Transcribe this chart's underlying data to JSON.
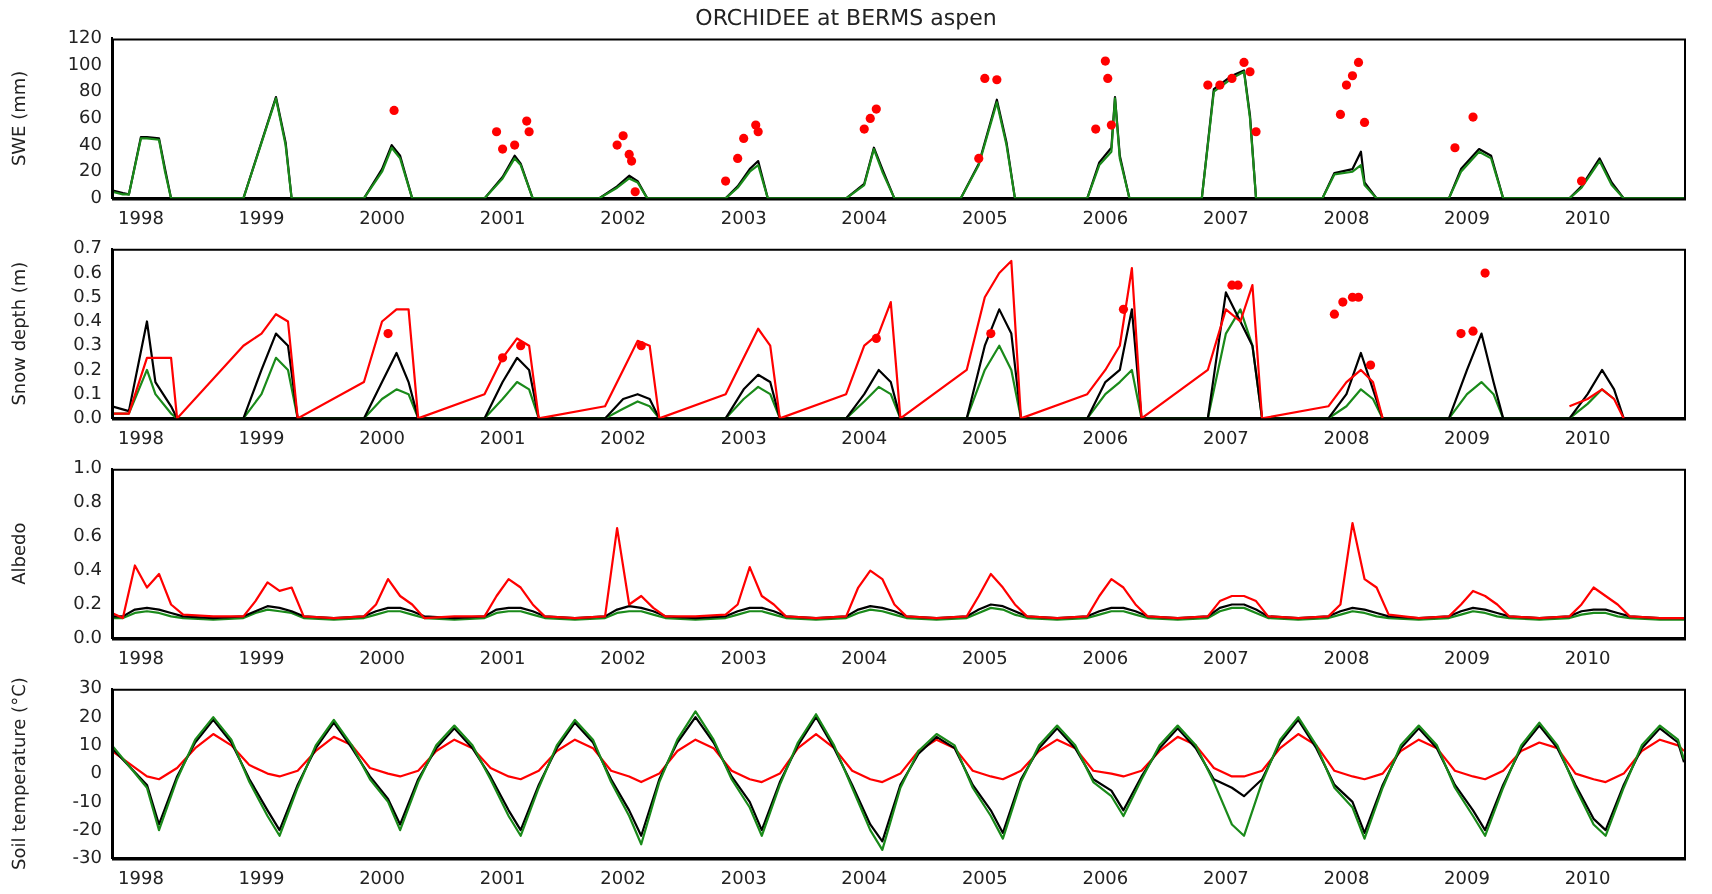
{
  "chart_data": [
    {
      "type": "line",
      "title": "ORCHIDEE at BERMS aspen",
      "ylabel": "SWE (mm)",
      "xlim": [
        1997.76,
        2010.8
      ],
      "xticks": [
        1998,
        1999,
        2000,
        2001,
        2002,
        2003,
        2004,
        2005,
        2006,
        2007,
        2008,
        2009,
        2010
      ],
      "ylim": [
        0,
        120
      ],
      "yticks": [
        0,
        20,
        40,
        60,
        80,
        100,
        120
      ],
      "grid": false,
      "legend": false,
      "x": [
        1997.76,
        1997.85,
        1997.9,
        1998.0,
        1998.05,
        1998.15,
        1998.2,
        1998.25,
        1998.3,
        1998.85,
        1999.12,
        1999.2,
        1999.25,
        1999.85,
        2000.0,
        2000.08,
        2000.15,
        2000.25,
        2000.85,
        2001.0,
        2001.1,
        2001.15,
        2001.25,
        2001.8,
        2001.95,
        2002.05,
        2002.12,
        2002.2,
        2002.85,
        2002.95,
        2003.05,
        2003.12,
        2003.2,
        2003.85,
        2004.0,
        2004.08,
        2004.15,
        2004.25,
        2004.8,
        2004.95,
        2005.1,
        2005.18,
        2005.25,
        2005.85,
        2005.95,
        2006.05,
        2006.08,
        2006.12,
        2006.2,
        2006.8,
        2006.9,
        2007.05,
        2007.15,
        2007.2,
        2007.25,
        2007.8,
        2007.9,
        2008.05,
        2008.12,
        2008.15,
        2008.25,
        2008.85,
        2008.95,
        2009.1,
        2009.2,
        2009.3,
        2009.85,
        2009.95,
        2010.1,
        2010.2,
        2010.3,
        2010.8
      ],
      "series": [
        {
          "color": "#1a8a1a",
          "values": [
            5,
            3,
            3,
            45,
            45,
            44,
            20,
            0,
            0,
            0,
            75,
            40,
            0,
            0,
            20,
            38,
            30,
            0,
            0,
            15,
            30,
            25,
            0,
            0,
            8,
            15,
            12,
            0,
            0,
            8,
            20,
            25,
            0,
            0,
            10,
            37,
            20,
            0,
            0,
            25,
            72,
            40,
            0,
            0,
            25,
            35,
            75,
            30,
            0,
            0,
            80,
            90,
            95,
            60,
            0,
            0,
            18,
            20,
            25,
            10,
            0,
            0,
            20,
            35,
            30,
            0,
            0,
            8,
            28,
            10,
            0,
            0
          ]
        },
        {
          "color": "#000000",
          "values": [
            6,
            4,
            3,
            46,
            46,
            45,
            22,
            0,
            0,
            0,
            76,
            42,
            0,
            0,
            22,
            40,
            32,
            0,
            0,
            16,
            32,
            26,
            0,
            0,
            9,
            17,
            13,
            0,
            0,
            9,
            22,
            28,
            0,
            0,
            11,
            38,
            22,
            0,
            0,
            26,
            74,
            42,
            0,
            0,
            27,
            38,
            76,
            32,
            0,
            0,
            82,
            92,
            96,
            62,
            0,
            0,
            19,
            22,
            35,
            12,
            0,
            0,
            22,
            37,
            32,
            0,
            0,
            9,
            30,
            12,
            0,
            0
          ]
        },
        {
          "type": "scatter",
          "marker": "circle",
          "color": "#ff0000",
          "x": [
            2000.1,
            2000.95,
            2001.0,
            2001.1,
            2001.2,
            2001.22,
            2001.95,
            2002.0,
            2002.05,
            2002.07,
            2002.1,
            2002.85,
            2002.95,
            2003.0,
            2003.1,
            2003.12,
            2004.0,
            2004.05,
            2004.1,
            2004.95,
            2005.0,
            2005.1,
            2005.92,
            2006.0,
            2006.02,
            2006.05,
            2006.85,
            2006.95,
            2007.05,
            2007.15,
            2007.2,
            2007.25,
            2007.95,
            2008.0,
            2008.05,
            2008.1,
            2008.15,
            2008.9,
            2009.05,
            2009.95
          ],
          "values": [
            66,
            50,
            37,
            40,
            58,
            50,
            40,
            47,
            33,
            28,
            5,
            13,
            30,
            45,
            55,
            50,
            52,
            60,
            67,
            30,
            90,
            89,
            52,
            103,
            90,
            55,
            85,
            85,
            90,
            102,
            95,
            50,
            63,
            85,
            92,
            102,
            57,
            38,
            61,
            13
          ]
        }
      ]
    },
    {
      "type": "line",
      "ylabel": "Snow depth (m)",
      "xlim": [
        1997.76,
        2010.8
      ],
      "xticks": [
        1998,
        1999,
        2000,
        2001,
        2002,
        2003,
        2004,
        2005,
        2006,
        2007,
        2008,
        2009,
        2010
      ],
      "ylim": [
        0,
        0.7
      ],
      "yticks": [
        {
          "value": 0,
          "label": "0.0"
        },
        {
          "value": 0.1,
          "label": "0.1"
        },
        {
          "value": 0.2,
          "label": "0.2"
        },
        {
          "value": 0.3,
          "label": "0.3"
        },
        {
          "value": 0.4,
          "label": "0.4"
        },
        {
          "value": 0.5,
          "label": "0.5"
        },
        {
          "value": 0.6,
          "label": "0.6"
        },
        {
          "value": 0.7,
          "label": "0.7"
        }
      ],
      "grid": false,
      "legend": false,
      "x": [
        1997.76,
        1997.9,
        1998.05,
        1998.12,
        1998.25,
        1998.3,
        1998.85,
        1999.0,
        1999.12,
        1999.22,
        1999.3,
        1999.85,
        2000.0,
        2000.12,
        2000.22,
        2000.3,
        2000.85,
        2001.0,
        2001.12,
        2001.22,
        2001.3,
        2001.85,
        2002.0,
        2002.12,
        2002.22,
        2002.3,
        2002.85,
        2003.0,
        2003.12,
        2003.22,
        2003.3,
        2003.85,
        2004.0,
        2004.12,
        2004.22,
        2004.3,
        2004.85,
        2005.0,
        2005.12,
        2005.22,
        2005.3,
        2005.85,
        2006.0,
        2006.12,
        2006.22,
        2006.3,
        2006.85,
        2007.0,
        2007.12,
        2007.22,
        2007.3,
        2007.85,
        2008.0,
        2008.12,
        2008.22,
        2008.3,
        2008.85,
        2009.0,
        2009.12,
        2009.22,
        2009.3,
        2009.85,
        2010.0,
        2010.12,
        2010.22,
        2010.3,
        2010.8
      ],
      "series": [
        {
          "color": "#ff0000",
          "values": [
            0.02,
            0.02,
            0.25,
            0.25,
            0.25,
            0,
            0.3,
            0.35,
            0.43,
            0.4,
            0,
            0.15,
            0.4,
            0.45,
            0.45,
            0,
            0.1,
            0.25,
            0.33,
            0.3,
            0,
            0.05,
            0.2,
            0.32,
            0.3,
            0,
            0.1,
            0.25,
            0.37,
            0.3,
            0,
            0.1,
            0.3,
            0.35,
            0.48,
            0,
            0.2,
            0.5,
            0.6,
            0.65,
            0,
            0.1,
            0.2,
            0.3,
            0.62,
            0,
            0.2,
            0.45,
            0.4,
            0.55,
            0,
            0.05,
            0.15,
            0.2,
            0.15,
            0,
            null,
            null,
            null,
            null,
            null,
            0.05,
            0.08,
            0.12,
            0.08,
            0,
            null
          ]
        },
        {
          "color": "#000000",
          "values": [
            0.05,
            0.03,
            0.4,
            0.15,
            0.05,
            0,
            0,
            0.2,
            0.35,
            0.3,
            0,
            0,
            0.15,
            0.27,
            0.15,
            0,
            0,
            0.15,
            0.25,
            0.2,
            0,
            0,
            0.08,
            0.1,
            0.08,
            0,
            0,
            0.12,
            0.18,
            0.15,
            0,
            0,
            0.1,
            0.2,
            0.15,
            0,
            0,
            0.3,
            0.45,
            0.35,
            0,
            0,
            0.15,
            0.2,
            0.45,
            0,
            0,
            0.52,
            0.4,
            0.3,
            0,
            0,
            0.1,
            0.27,
            0.12,
            0,
            0,
            0.2,
            0.35,
            0.15,
            0,
            0,
            0.1,
            0.2,
            0.12,
            0,
            0
          ]
        },
        {
          "color": "#1a8a1a",
          "values": [
            0.02,
            0.02,
            0.2,
            0.1,
            0.02,
            0,
            0,
            0.1,
            0.25,
            0.2,
            0,
            0,
            0.08,
            0.12,
            0.1,
            0,
            0,
            0.08,
            0.15,
            0.12,
            0,
            0,
            0.04,
            0.07,
            0.05,
            0,
            0,
            0.08,
            0.13,
            0.1,
            0,
            0,
            0.07,
            0.13,
            0.1,
            0,
            0,
            0.2,
            0.3,
            0.2,
            0,
            0,
            0.1,
            0.15,
            0.2,
            0,
            0,
            0.35,
            0.45,
            0.3,
            0,
            0,
            0.05,
            0.12,
            0.08,
            0,
            0,
            0.1,
            0.15,
            0.1,
            0,
            0,
            0.06,
            0.12,
            0.08,
            null,
            null
          ]
        },
        {
          "type": "scatter",
          "marker": "circle",
          "color": "#ff0000",
          "x": [
            2000.05,
            2001.0,
            2001.15,
            2002.15,
            2004.1,
            2005.05,
            2006.15,
            2007.05,
            2007.1,
            2007.9,
            2007.97,
            2008.05,
            2008.1,
            2008.2,
            2008.95,
            2009.05,
            2009.15
          ],
          "values": [
            0.35,
            0.25,
            0.3,
            0.3,
            0.33,
            0.35,
            0.45,
            0.55,
            0.55,
            0.43,
            0.48,
            0.5,
            0.5,
            0.22,
            0.35,
            0.36,
            0.6
          ]
        }
      ]
    },
    {
      "type": "line",
      "ylabel": "Albedo",
      "xlim": [
        1997.76,
        2010.8
      ],
      "xticks": [
        1998,
        1999,
        2000,
        2001,
        2002,
        2003,
        2004,
        2005,
        2006,
        2007,
        2008,
        2009,
        2010
      ],
      "ylim": [
        0,
        1
      ],
      "yticks": [
        {
          "value": 0,
          "label": "0.0"
        },
        {
          "value": 0.2,
          "label": "0.2"
        },
        {
          "value": 0.4,
          "label": "0.4"
        },
        {
          "value": 0.6,
          "label": "0.6"
        },
        {
          "value": 0.8,
          "label": "0.8"
        },
        {
          "value": 1,
          "label": "1.0"
        }
      ],
      "grid": false,
      "legend": false,
      "x": [
        1997.76,
        1997.85,
        1997.95,
        1998.05,
        1998.15,
        1998.25,
        1998.35,
        1998.6,
        1998.85,
        1998.95,
        1999.05,
        1999.15,
        1999.25,
        1999.35,
        1999.6,
        1999.85,
        1999.95,
        2000.05,
        2000.15,
        2000.25,
        2000.35,
        2000.6,
        2000.85,
        2000.95,
        2001.05,
        2001.15,
        2001.25,
        2001.35,
        2001.6,
        2001.85,
        2001.95,
        2002.05,
        2002.15,
        2002.25,
        2002.35,
        2002.6,
        2002.85,
        2002.95,
        2003.05,
        2003.15,
        2003.25,
        2003.35,
        2003.6,
        2003.85,
        2003.95,
        2004.05,
        2004.15,
        2004.25,
        2004.35,
        2004.6,
        2004.85,
        2004.95,
        2005.05,
        2005.15,
        2005.25,
        2005.35,
        2005.6,
        2005.85,
        2005.95,
        2006.05,
        2006.15,
        2006.25,
        2006.35,
        2006.6,
        2006.85,
        2006.95,
        2007.05,
        2007.15,
        2007.25,
        2007.35,
        2007.6,
        2007.85,
        2007.95,
        2008.05,
        2008.15,
        2008.25,
        2008.35,
        2008.6,
        2008.85,
        2008.95,
        2009.05,
        2009.15,
        2009.25,
        2009.35,
        2009.6,
        2009.85,
        2009.95,
        2010.05,
        2010.15,
        2010.25,
        2010.35,
        2010.6,
        2010.8
      ],
      "series": [
        {
          "color": "#ff0000",
          "values": [
            0.15,
            0.12,
            0.43,
            0.3,
            0.38,
            0.2,
            0.14,
            0.13,
            0.13,
            0.22,
            0.33,
            0.28,
            0.3,
            0.13,
            0.12,
            0.13,
            0.2,
            0.35,
            0.25,
            0.2,
            0.12,
            0.13,
            0.13,
            0.25,
            0.35,
            0.3,
            0.2,
            0.13,
            0.12,
            0.13,
            0.65,
            0.2,
            0.25,
            0.18,
            0.13,
            0.13,
            0.14,
            0.2,
            0.42,
            0.25,
            0.2,
            0.13,
            0.12,
            0.13,
            0.3,
            0.4,
            0.35,
            0.2,
            0.13,
            0.12,
            0.13,
            0.25,
            0.38,
            0.3,
            0.2,
            0.13,
            0.12,
            0.13,
            0.25,
            0.35,
            0.3,
            0.2,
            0.13,
            0.12,
            0.13,
            0.22,
            0.25,
            0.25,
            0.22,
            0.13,
            0.12,
            0.13,
            0.2,
            0.68,
            0.35,
            0.3,
            0.14,
            0.12,
            0.13,
            0.2,
            0.28,
            0.25,
            0.2,
            0.13,
            0.12,
            0.13,
            0.2,
            0.3,
            0.25,
            0.2,
            0.13,
            0.12,
            0.12
          ]
        },
        {
          "color": "#000000",
          "values": [
            0.13,
            0.13,
            0.17,
            0.18,
            0.17,
            0.15,
            0.13,
            0.12,
            0.13,
            0.16,
            0.19,
            0.18,
            0.16,
            0.13,
            0.12,
            0.13,
            0.16,
            0.18,
            0.18,
            0.16,
            0.13,
            0.12,
            0.13,
            0.17,
            0.18,
            0.18,
            0.16,
            0.13,
            0.12,
            0.13,
            0.17,
            0.19,
            0.18,
            0.16,
            0.13,
            0.12,
            0.13,
            0.16,
            0.18,
            0.18,
            0.16,
            0.13,
            0.12,
            0.13,
            0.17,
            0.19,
            0.18,
            0.16,
            0.13,
            0.12,
            0.13,
            0.17,
            0.2,
            0.19,
            0.16,
            0.13,
            0.12,
            0.13,
            0.16,
            0.18,
            0.18,
            0.16,
            0.13,
            0.12,
            0.13,
            0.18,
            0.2,
            0.2,
            0.17,
            0.13,
            0.12,
            0.13,
            0.16,
            0.18,
            0.17,
            0.15,
            0.13,
            0.12,
            0.13,
            0.16,
            0.18,
            0.17,
            0.15,
            0.13,
            0.12,
            0.13,
            0.16,
            0.17,
            0.17,
            0.15,
            0.13,
            0.12,
            0.12
          ]
        },
        {
          "color": "#1a8a1a",
          "values": [
            0.12,
            0.12,
            0.15,
            0.16,
            0.15,
            0.13,
            0.12,
            0.11,
            0.12,
            0.15,
            0.17,
            0.16,
            0.15,
            0.12,
            0.11,
            0.12,
            0.14,
            0.16,
            0.16,
            0.14,
            0.12,
            0.11,
            0.12,
            0.15,
            0.16,
            0.16,
            0.14,
            0.12,
            0.11,
            0.12,
            0.15,
            0.16,
            0.16,
            0.14,
            0.12,
            0.11,
            0.12,
            0.14,
            0.16,
            0.16,
            0.14,
            0.12,
            0.11,
            0.12,
            0.15,
            0.17,
            0.16,
            0.14,
            0.12,
            0.11,
            0.12,
            0.15,
            0.18,
            0.17,
            0.14,
            0.12,
            0.11,
            0.12,
            0.14,
            0.16,
            0.16,
            0.14,
            0.12,
            0.11,
            0.12,
            0.16,
            0.18,
            0.18,
            0.15,
            0.12,
            0.11,
            0.12,
            0.14,
            0.16,
            0.15,
            0.13,
            0.12,
            0.11,
            0.12,
            0.14,
            0.16,
            0.15,
            0.13,
            0.12,
            0.11,
            0.12,
            0.14,
            0.15,
            0.15,
            0.13,
            0.12,
            0.11,
            0.11
          ]
        }
      ]
    },
    {
      "type": "line",
      "ylabel": "Soil temperature (°C)",
      "xlim": [
        1997.76,
        2010.8
      ],
      "xticks": [
        1998,
        1999,
        2000,
        2001,
        2002,
        2003,
        2004,
        2005,
        2006,
        2007,
        2008,
        2009,
        2010
      ],
      "ylim": [
        -30,
        30
      ],
      "yticks": [
        -30,
        -20,
        -10,
        0,
        10,
        20,
        30
      ],
      "grid": false,
      "legend": false,
      "x": [
        1997.76,
        1998.05,
        1998.15,
        1998.3,
        1998.45,
        1998.6,
        1998.75,
        1998.9,
        1999.05,
        1999.15,
        1999.3,
        1999.45,
        1999.6,
        1999.75,
        1999.9,
        2000.05,
        2000.15,
        2000.3,
        2000.45,
        2000.6,
        2000.75,
        2000.9,
        2001.05,
        2001.15,
        2001.3,
        2001.45,
        2001.6,
        2001.75,
        2001.9,
        2002.05,
        2002.15,
        2002.3,
        2002.45,
        2002.6,
        2002.75,
        2002.9,
        2003.05,
        2003.15,
        2003.3,
        2003.45,
        2003.6,
        2003.75,
        2003.9,
        2004.05,
        2004.15,
        2004.3,
        2004.45,
        2004.6,
        2004.75,
        2004.9,
        2005.05,
        2005.15,
        2005.3,
        2005.45,
        2005.6,
        2005.75,
        2005.9,
        2006.05,
        2006.15,
        2006.3,
        2006.45,
        2006.6,
        2006.75,
        2006.9,
        2007.05,
        2007.15,
        2007.3,
        2007.45,
        2007.6,
        2007.75,
        2007.9,
        2008.05,
        2008.15,
        2008.3,
        2008.45,
        2008.6,
        2008.75,
        2008.9,
        2009.05,
        2009.15,
        2009.3,
        2009.45,
        2009.6,
        2009.75,
        2009.9,
        2010.05,
        2010.15,
        2010.3,
        2010.45,
        2010.6,
        2010.75,
        2010.8
      ],
      "series": [
        {
          "color": "#1a8a1a",
          "values": [
            10,
            -5,
            -20,
            -2,
            12,
            20,
            12,
            -3,
            -15,
            -22,
            -5,
            10,
            19,
            10,
            -2,
            -10,
            -20,
            -3,
            10,
            17,
            10,
            -2,
            -15,
            -22,
            -5,
            10,
            19,
            12,
            -3,
            -15,
            -25,
            -3,
            12,
            22,
            12,
            -2,
            -12,
            -22,
            -4,
            11,
            21,
            10,
            -5,
            -20,
            -27,
            -5,
            8,
            14,
            10,
            -5,
            -15,
            -23,
            -3,
            10,
            17,
            10,
            -3,
            -8,
            -15,
            -2,
            10,
            17,
            10,
            -3,
            -18,
            -22,
            -3,
            12,
            20,
            10,
            -5,
            -12,
            -23,
            -5,
            10,
            17,
            10,
            -5,
            -15,
            -22,
            -5,
            10,
            18,
            10,
            -5,
            -18,
            -22,
            -5,
            10,
            17,
            12,
            5
          ]
        },
        {
          "color": "#000000",
          "values": [
            9,
            -4,
            -18,
            -1,
            11,
            19,
            11,
            -2,
            -13,
            -20,
            -4,
            9,
            18,
            9,
            -1,
            -9,
            -18,
            -2,
            9,
            16,
            9,
            -1,
            -13,
            -20,
            -4,
            9,
            18,
            11,
            -2,
            -13,
            -22,
            -2,
            11,
            20,
            11,
            -1,
            -10,
            -20,
            -3,
            10,
            20,
            9,
            -4,
            -18,
            -24,
            -4,
            7,
            13,
            9,
            -4,
            -13,
            -21,
            -2,
            9,
            16,
            9,
            -2,
            -6,
            -13,
            -1,
            9,
            16,
            9,
            -2,
            -5,
            -8,
            -2,
            11,
            19,
            9,
            -4,
            -10,
            -21,
            -4,
            9,
            16,
            9,
            -4,
            -13,
            -20,
            -4,
            9,
            17,
            9,
            -4,
            -16,
            -20,
            -4,
            9,
            16,
            11,
            4
          ]
        },
        {
          "color": "#ff0000",
          "values": [
            8,
            -1,
            -2,
            2,
            9,
            14,
            10,
            3,
            0,
            -1,
            1,
            8,
            13,
            10,
            2,
            0,
            -1,
            1,
            8,
            12,
            9,
            2,
            -1,
            -2,
            1,
            8,
            12,
            9,
            1,
            -1,
            -3,
            0,
            8,
            12,
            9,
            1,
            -2,
            -3,
            0,
            9,
            14,
            9,
            1,
            -2,
            -3,
            0,
            8,
            12,
            9,
            1,
            -1,
            -2,
            1,
            8,
            12,
            9,
            1,
            0,
            -1,
            1,
            8,
            13,
            10,
            2,
            -1,
            -1,
            1,
            9,
            14,
            10,
            1,
            -1,
            -2,
            0,
            8,
            12,
            9,
            1,
            -1,
            -2,
            1,
            8,
            11,
            9,
            0,
            -2,
            -3,
            0,
            8,
            12,
            10,
            8
          ]
        }
      ]
    }
  ]
}
